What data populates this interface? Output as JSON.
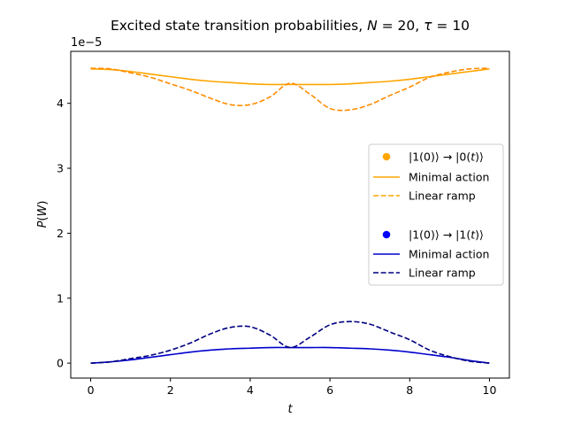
{
  "chart_data": {
    "type": "line",
    "title": "Excited state transition probabilities, N = 20, τ = 10",
    "title_parts": {
      "prefix": "Excited state transition probabilities, ",
      "n_sym": "N",
      "n_val": " = 20, ",
      "tau_sym": "τ",
      "tau_val": " = 10"
    },
    "xlabel": "t",
    "ylabel_parts": {
      "p": "P",
      "w": "W"
    },
    "ylabel": "P(W)",
    "y_multiplier_label": "1e−5",
    "y_multiplier": 1e-05,
    "xlim": [
      -0.5,
      10.5
    ],
    "ylim": [
      -0.23,
      4.8
    ],
    "xticks": [
      0,
      2,
      4,
      6,
      8,
      10
    ],
    "xtick_labels": [
      "0",
      "2",
      "4",
      "6",
      "8",
      "10"
    ],
    "yticks": [
      0,
      1,
      2,
      3,
      4
    ],
    "ytick_labels": [
      "0",
      "1",
      "2",
      "3",
      "4"
    ],
    "grid": false,
    "legend_position": "center-right",
    "legend": [
      {
        "kind": "marker",
        "color": "#ffa500",
        "label_parts": {
          "a": "|1(0)⟩ → |0(",
          "t": "t",
          "b": ")⟩"
        }
      },
      {
        "kind": "solid",
        "color": "#ffa500",
        "label": "Minimal action"
      },
      {
        "kind": "dashed",
        "color": "#ffa500",
        "label": "Linear ramp"
      },
      {
        "kind": "marker",
        "color": "#0000ff",
        "label_parts": {
          "a": "|1(0)⟩ → |1(",
          "t": "t",
          "b": ")⟩"
        }
      },
      {
        "kind": "solid",
        "color": "#0000cd",
        "label": "Minimal action"
      },
      {
        "kind": "dashed",
        "color": "#000080",
        "label": "Linear ramp"
      }
    ],
    "x": [
      0,
      0.5,
      1,
      1.5,
      2,
      2.5,
      3,
      3.5,
      4,
      4.5,
      5,
      5.5,
      6,
      6.5,
      7,
      7.5,
      8,
      8.5,
      9,
      9.5,
      10
    ],
    "series": [
      {
        "name": "|1(0)⟩ → |0(t)⟩ Minimal action",
        "color": "#ffa500",
        "style": "solid",
        "values": [
          4.53,
          4.52,
          4.49,
          4.45,
          4.41,
          4.37,
          4.34,
          4.32,
          4.3,
          4.29,
          4.29,
          4.29,
          4.29,
          4.3,
          4.32,
          4.34,
          4.37,
          4.41,
          4.45,
          4.49,
          4.53
        ]
      },
      {
        "name": "|1(0)⟩ → |0(t)⟩ Linear ramp",
        "color": "#ff8c00",
        "style": "dashed",
        "values": [
          4.54,
          4.53,
          4.47,
          4.4,
          4.3,
          4.2,
          4.08,
          3.98,
          3.98,
          4.1,
          4.31,
          4.14,
          3.92,
          3.9,
          3.98,
          4.12,
          4.25,
          4.4,
          4.48,
          4.53,
          4.54
        ]
      },
      {
        "name": "|1(0)⟩ → |1(t)⟩ Minimal action",
        "color": "#0000cd",
        "style": "solid",
        "values": [
          0.0,
          0.02,
          0.05,
          0.09,
          0.13,
          0.17,
          0.2,
          0.22,
          0.23,
          0.24,
          0.24,
          0.24,
          0.24,
          0.23,
          0.22,
          0.2,
          0.17,
          0.13,
          0.09,
          0.04,
          0.0
        ]
      },
      {
        "name": "|1(0)⟩ → |1(t)⟩ Linear ramp",
        "color": "#000080",
        "style": "dashed",
        "values": [
          0.0,
          0.02,
          0.07,
          0.12,
          0.2,
          0.31,
          0.45,
          0.55,
          0.56,
          0.43,
          0.24,
          0.4,
          0.59,
          0.64,
          0.6,
          0.48,
          0.36,
          0.2,
          0.1,
          0.03,
          0.0
        ]
      }
    ]
  }
}
